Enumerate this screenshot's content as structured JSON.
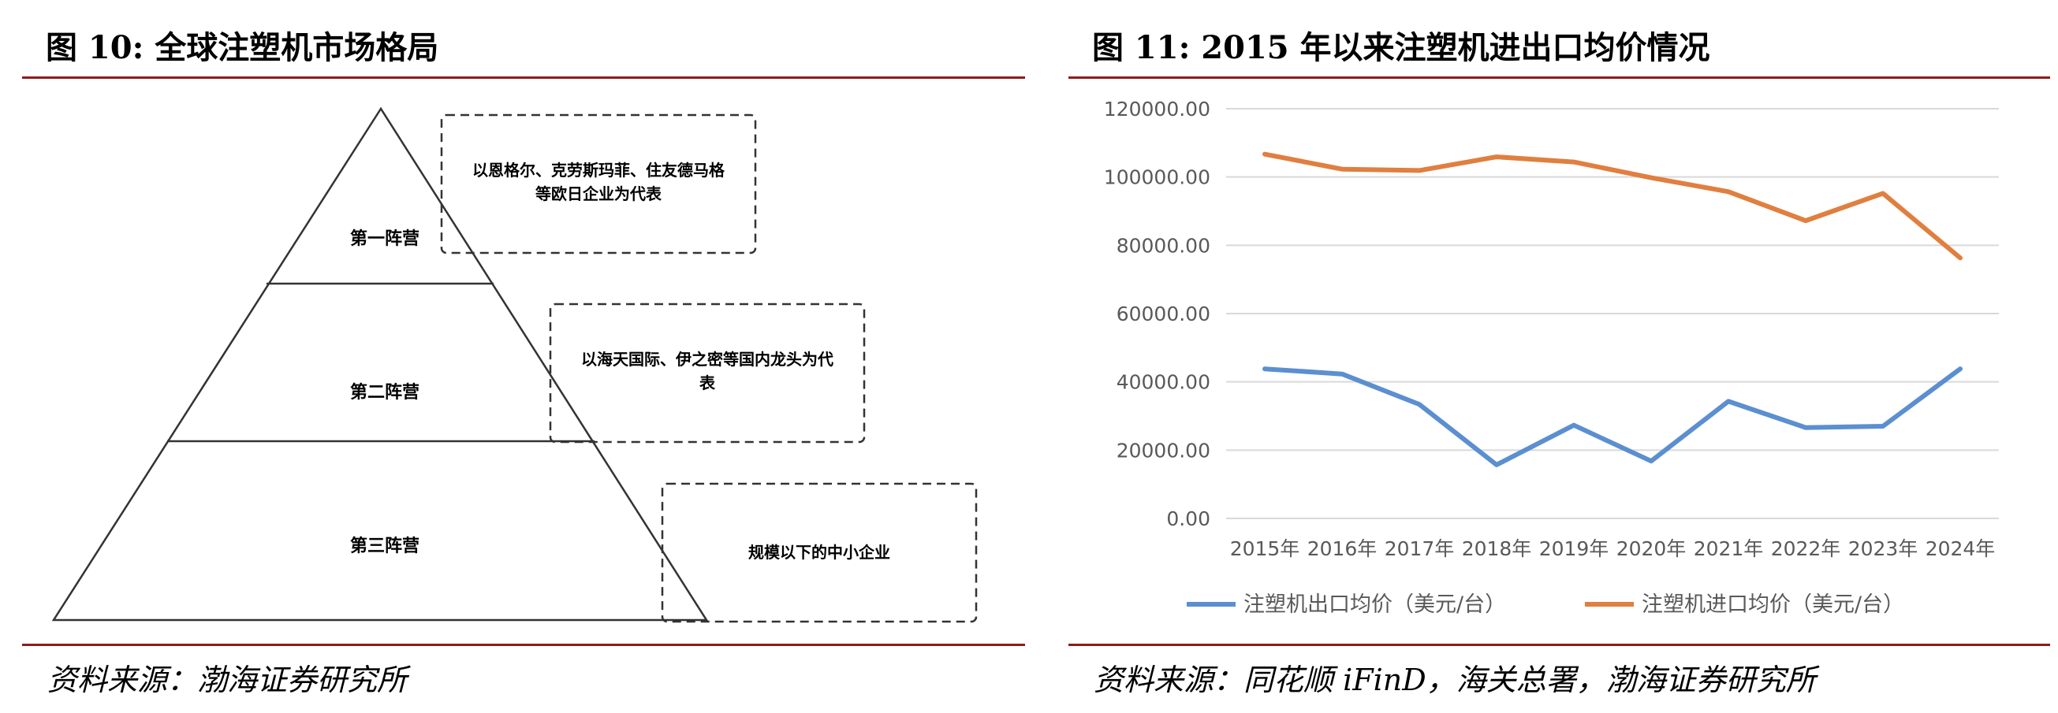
{
  "left_figure": {
    "title": "图 10:  全球注塑机市场格局",
    "tiers": [
      {
        "label": "第一阵营",
        "description": "以恩格尔、克劳斯玛菲、住友德马格 等欧日企业为代表"
      },
      {
        "label": "第二阵营",
        "description": "以海天国际、伊之密等国内龙头为代 表"
      },
      {
        "label": "第三阵营",
        "description": "规模以下的中小企业"
      }
    ],
    "source": "资料来源：渤海证券研究所"
  },
  "right_figure": {
    "title": "图 11:  2015 年以来注塑机进出口均价情况",
    "source": "资料来源：同花顺 iFinD，海关总署，渤海证券研究所"
  },
  "chart_data": {
    "type": "line",
    "title": "图 11:  2015 年以来注塑机进出口均价情况",
    "categories": [
      "2015年",
      "2016年",
      "2017年",
      "2018年",
      "2019年",
      "2020年",
      "2021年",
      "2022年",
      "2023年",
      "2024年"
    ],
    "series": [
      {
        "name": "注塑机出口均价（美元/台）",
        "color": "#5b8fd0",
        "values": [
          43800,
          42300,
          33400,
          15700,
          27300,
          16800,
          34300,
          26600,
          27000,
          43800
        ]
      },
      {
        "name": "注塑机进口均价（美元/台）",
        "color": "#e07f3f",
        "values": [
          106700,
          102300,
          101900,
          105900,
          104400,
          99800,
          95700,
          87200,
          95200,
          76300
        ]
      }
    ],
    "y_ticks": [
      "0.00",
      "20000.00",
      "40000.00",
      "60000.00",
      "80000.00",
      "100000.00",
      "120000.00"
    ],
    "ylim": [
      0,
      120000
    ],
    "grid": true,
    "legend_position": "bottom"
  }
}
